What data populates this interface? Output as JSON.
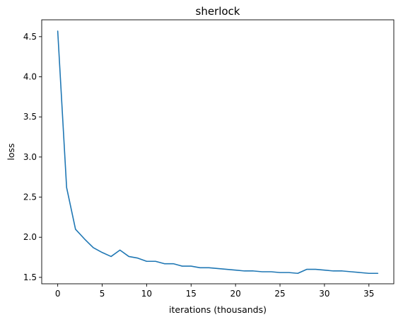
{
  "chart_data": {
    "type": "line",
    "title": "sherlock",
    "xlabel": "iterations (thousands)",
    "ylabel": "loss",
    "xlim": [
      -1.8,
      37.8
    ],
    "ylim": [
      1.42,
      4.71
    ],
    "xticks": [
      0,
      5,
      10,
      15,
      20,
      25,
      30,
      35
    ],
    "yticks": [
      1.5,
      2.0,
      2.5,
      3.0,
      3.5,
      4.0,
      4.5
    ],
    "ytick_labels": [
      "1.5",
      "2.0",
      "2.5",
      "3.0",
      "3.5",
      "4.0",
      "4.5"
    ],
    "grid": false,
    "line_color": "#1f77b4",
    "series": [
      {
        "x": [
          0,
          1,
          2,
          3,
          4,
          5,
          6,
          7,
          8,
          9,
          10,
          11,
          12,
          13,
          14,
          15,
          16,
          17,
          18,
          19,
          20,
          21,
          22,
          23,
          24,
          25,
          26,
          27,
          28,
          29,
          30,
          31,
          32,
          33,
          34,
          35,
          36
        ],
        "values": [
          4.57,
          2.62,
          2.1,
          1.98,
          1.87,
          1.81,
          1.76,
          1.84,
          1.76,
          1.74,
          1.7,
          1.7,
          1.67,
          1.67,
          1.64,
          1.64,
          1.62,
          1.62,
          1.61,
          1.6,
          1.59,
          1.58,
          1.58,
          1.57,
          1.57,
          1.56,
          1.56,
          1.55,
          1.6,
          1.6,
          1.59,
          1.58,
          1.58,
          1.57,
          1.56,
          1.55,
          1.55
        ]
      }
    ]
  }
}
